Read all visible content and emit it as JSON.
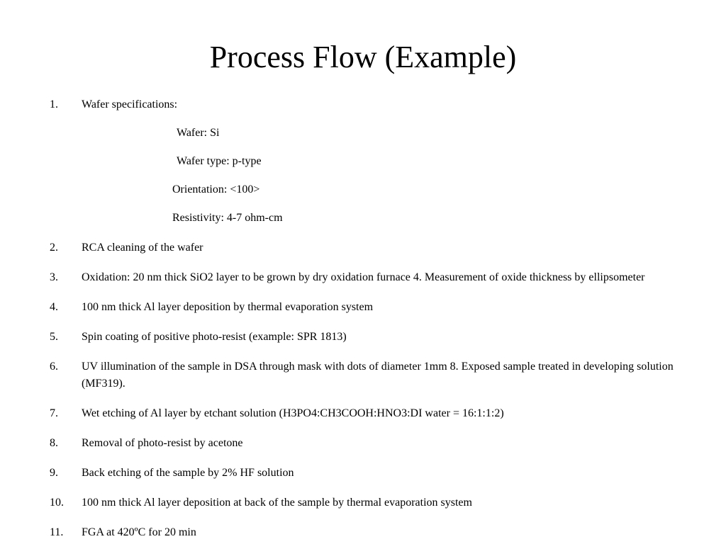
{
  "title": "Process Flow (Example)",
  "title_fontsize": 44,
  "body_fontsize": 16,
  "font_family": "Times New Roman",
  "text_color": "#000000",
  "background_color": "#ffffff",
  "item1": {
    "heading": "Wafer specifications:",
    "subs": {
      "a": "Wafer: Si",
      "b": "Wafer type: p-type",
      "c": "Orientation: <100>",
      "d": "Resistivity: 4-7 ohm-cm"
    }
  },
  "item2": "RCA cleaning of the wafer",
  "item3": "Oxidation: 20 nm thick SiO2 layer to be grown by dry oxidation furnace 4. Measurement of oxide thickness by ellipsometer",
  "item4": "100 nm thick Al layer deposition by thermal evaporation system",
  "item5": "Spin coating of positive photo-resist (example: SPR 1813)",
  "item6": "UV illumination of the sample in DSA through mask with dots of diameter 1mm 8. Exposed sample treated in developing solution (MF319).",
  "item7": "Wet etching of Al layer by etchant solution (H3PO4:CH3COOH:HNO3:DI water = 16:1:1:2)",
  "item8": "Removal of photo-resist by acetone",
  "item9": "Back etching of the sample by 2% HF solution",
  "item10": "100 nm thick Al layer deposition at back of the sample by thermal evaporation system",
  "item11": "FGA at 420ºC for 20 min"
}
